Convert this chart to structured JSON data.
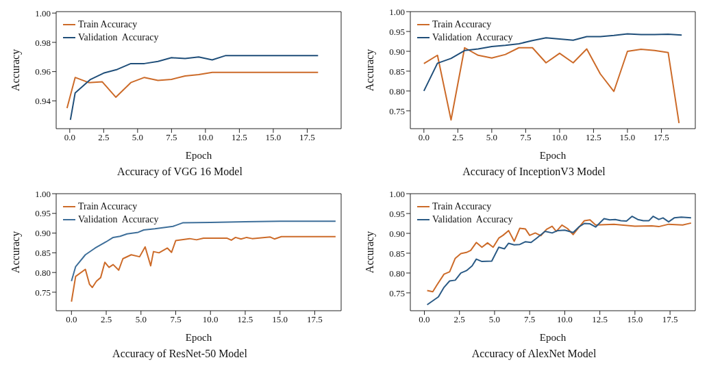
{
  "chart_data": [
    {
      "type": "line",
      "title": "Accuracy of VGG 16 Model",
      "xlabel": "Epoch",
      "ylabel": "Accuracy",
      "legend": "top left",
      "grid": false,
      "marker": "none",
      "line_style": "solid",
      "xlim": [
        -1,
        20
      ],
      "ylim": [
        0.921,
        1.001
      ],
      "xticks": [
        {
          "value": 0,
          "label": "0.0"
        },
        {
          "value": 2.5,
          "label": "2.5"
        },
        {
          "value": 5,
          "label": "5.0"
        },
        {
          "value": 7.5,
          "label": "7.5"
        },
        {
          "value": 10,
          "label": "10.0"
        },
        {
          "value": 12.5,
          "label": "12.5"
        },
        {
          "value": 15,
          "label": "15.0"
        },
        {
          "value": 17.5,
          "label": "17.5"
        }
      ],
      "yticks": [
        0.94,
        0.96,
        0.98,
        {
          "value": 1,
          "label": "1.00"
        }
      ],
      "series": [
        {
          "name": "Train Accuracy",
          "color": "#cc6a28",
          "x": [
            -0.2,
            0.4,
            1.4,
            2.4,
            3.4,
            4.5,
            5.5,
            6.5,
            7.5,
            8.5,
            9.5,
            10.5,
            18.3
          ],
          "values": [
            0.935,
            0.956,
            0.9525,
            0.953,
            0.9425,
            0.9525,
            0.956,
            0.954,
            0.9547,
            0.957,
            0.958,
            0.9595,
            0.9595
          ]
        },
        {
          "name": "Validation  Accuracy",
          "color": "#1f4e79",
          "x": [
            0.05,
            0.4,
            1.5,
            2.5,
            3.5,
            4.5,
            5.5,
            6.5,
            7.5,
            8.5,
            9.5,
            10.5,
            11.5,
            18.3
          ],
          "values": [
            0.927,
            0.9455,
            0.9545,
            0.959,
            0.9615,
            0.9655,
            0.9655,
            0.967,
            0.9695,
            0.969,
            0.97,
            0.968,
            0.971,
            0.971
          ]
        }
      ]
    },
    {
      "type": "line",
      "title": "Accuracy of InceptionV3 Model",
      "xlabel": "Epoch",
      "ylabel": "Accuracy",
      "legend": "top left",
      "grid": false,
      "marker": "none",
      "line_style": "solid",
      "xlim": [
        -1,
        20
      ],
      "ylim": [
        0.705,
        1.0
      ],
      "xticks": [
        {
          "value": 0,
          "label": "0.0"
        },
        {
          "value": 2.5,
          "label": "2.5"
        },
        {
          "value": 5,
          "label": "5.0"
        },
        {
          "value": 7.5,
          "label": "7.5"
        },
        {
          "value": 10,
          "label": "10.0"
        },
        {
          "value": 12.5,
          "label": "12.5"
        },
        {
          "value": 15,
          "label": "15.0"
        },
        {
          "value": 17.5,
          "label": "17.5"
        }
      ],
      "yticks": [
        0.75,
        {
          "value": 0.8,
          "label": "0.80"
        },
        0.85,
        {
          "value": 0.9,
          "label": "0.90"
        },
        0.95,
        {
          "value": 1,
          "label": "1.00"
        }
      ],
      "series": [
        {
          "name": "Train Accuracy",
          "color": "#cc6a28",
          "x": [
            0,
            1,
            2,
            3,
            4,
            5,
            6,
            7,
            8,
            9,
            10,
            11,
            12,
            13,
            14,
            15,
            16,
            17,
            18,
            18.8
          ],
          "values": [
            0.869,
            0.89,
            0.727,
            0.909,
            0.89,
            0.883,
            0.892,
            0.909,
            0.909,
            0.871,
            0.895,
            0.871,
            0.906,
            0.843,
            0.799,
            0.9,
            0.905,
            0.902,
            0.897,
            0.719
          ]
        },
        {
          "name": "Validation  Accuracy",
          "color": "#1f4e79",
          "x": [
            0,
            1,
            2,
            3,
            4,
            5,
            6,
            7,
            8,
            9,
            10,
            11,
            12,
            13,
            14,
            15,
            16,
            17,
            18,
            19
          ],
          "values": [
            0.8,
            0.87,
            0.882,
            0.902,
            0.906,
            0.912,
            0.915,
            0.919,
            0.927,
            0.934,
            0.931,
            0.928,
            0.937,
            0.937,
            0.94,
            0.944,
            0.942,
            0.942,
            0.943,
            0.941
          ]
        }
      ]
    },
    {
      "type": "line",
      "title": "Accuracy of ResNet-50 Model",
      "xlabel": "Epoch",
      "ylabel": "Accuracy",
      "legend": "top left",
      "grid": false,
      "marker": "none",
      "line_style": "solid",
      "xlim": [
        -1.1,
        19.4
      ],
      "ylim": [
        0.703,
        1.0
      ],
      "xticks": [
        {
          "value": 0,
          "label": "0.0"
        },
        {
          "value": 2.5,
          "label": "2.5"
        },
        {
          "value": 5,
          "label": "5.0"
        },
        {
          "value": 7.5,
          "label": "7.5"
        },
        {
          "value": 10,
          "label": "10.0"
        },
        {
          "value": 12.5,
          "label": "12.5"
        },
        {
          "value": 15,
          "label": "15.0"
        },
        {
          "value": 17.5,
          "label": "17.5"
        }
      ],
      "yticks": [
        0.75,
        {
          "value": 0.8,
          "label": "0.80"
        },
        0.85,
        {
          "value": 0.9,
          "label": "0.90"
        },
        0.95,
        {
          "value": 1,
          "label": "1.00"
        }
      ],
      "series": [
        {
          "name": "Train Accuracy",
          "color": "#cc6a28",
          "x": [
            0,
            0.3,
            1.0,
            1.3,
            1.5,
            1.8,
            2.1,
            2.4,
            2.7,
            3.0,
            3.4,
            3.7,
            4.3,
            4.9,
            5.3,
            5.7,
            5.9,
            6.3,
            6.9,
            7.2,
            7.5,
            8.5,
            9.0,
            9.5,
            11.2,
            11.5,
            11.8,
            12.2,
            12.6,
            13.0,
            14.3,
            14.6,
            15.1,
            19.0
          ],
          "values": [
            0.726,
            0.79,
            0.808,
            0.77,
            0.762,
            0.778,
            0.787,
            0.826,
            0.813,
            0.82,
            0.806,
            0.835,
            0.845,
            0.84,
            0.865,
            0.817,
            0.853,
            0.85,
            0.862,
            0.851,
            0.881,
            0.886,
            0.883,
            0.887,
            0.887,
            0.882,
            0.889,
            0.885,
            0.889,
            0.886,
            0.89,
            0.885,
            0.891,
            0.891
          ]
        },
        {
          "name": "Validation  Accuracy",
          "color": "#3d6e99",
          "x": [
            0,
            0.3,
            1.0,
            1.7,
            2.5,
            3.0,
            3.5,
            4.0,
            4.8,
            5.2,
            6.0,
            7.3,
            8.0,
            10.0,
            12.5,
            15.0,
            19.0
          ],
          "values": [
            0.778,
            0.815,
            0.845,
            0.862,
            0.878,
            0.889,
            0.892,
            0.898,
            0.902,
            0.908,
            0.911,
            0.917,
            0.926,
            0.927,
            0.929,
            0.93,
            0.93
          ]
        }
      ]
    },
    {
      "type": "line",
      "title": "Accuracy of AlexNet Model",
      "xlabel": "Epoch",
      "ylabel": "Accuracy",
      "legend": "top left",
      "grid": false,
      "marker": "none",
      "line_style": "solid",
      "xlim": [
        -1,
        19.3
      ],
      "ylim": [
        0.705,
        1.0
      ],
      "xticks": [
        {
          "value": 0,
          "label": "0.0"
        },
        {
          "value": 2.5,
          "label": "2.5"
        },
        {
          "value": 5,
          "label": "5.0"
        },
        {
          "value": 7.5,
          "label": "7.5"
        },
        {
          "value": 10,
          "label": "10.0"
        },
        {
          "value": 12.5,
          "label": "12.5"
        },
        {
          "value": 15,
          "label": "15.0"
        },
        {
          "value": 17.5,
          "label": "17.5"
        }
      ],
      "yticks": [
        0.75,
        {
          "value": 0.8,
          "label": "0.80"
        },
        0.85,
        {
          "value": 0.9,
          "label": "0.90"
        },
        0.95,
        {
          "value": 1,
          "label": "1.00"
        }
      ],
      "series": [
        {
          "name": "Train Accuracy",
          "color": "#cc6a28",
          "x": [
            0.2,
            0.6,
            0.9,
            1.4,
            1.8,
            2.2,
            2.6,
            3.0,
            3.3,
            3.7,
            4.1,
            4.5,
            4.9,
            5.3,
            5.6,
            6.0,
            6.4,
            6.8,
            7.2,
            7.5,
            7.9,
            8.3,
            8.7,
            9.1,
            9.4,
            9.8,
            10.2,
            10.6,
            11.0,
            11.4,
            11.8,
            12.2,
            13.5,
            15.0,
            16.2,
            16.7,
            17.4,
            18.4,
            19.0
          ],
          "values": [
            0.756,
            0.753,
            0.77,
            0.797,
            0.803,
            0.837,
            0.849,
            0.852,
            0.857,
            0.877,
            0.865,
            0.876,
            0.865,
            0.888,
            0.895,
            0.907,
            0.88,
            0.913,
            0.911,
            0.895,
            0.901,
            0.894,
            0.91,
            0.918,
            0.905,
            0.921,
            0.912,
            0.897,
            0.915,
            0.932,
            0.934,
            0.921,
            0.923,
            0.918,
            0.919,
            0.917,
            0.923,
            0.921,
            0.926
          ]
        },
        {
          "name": "Validation  Accuracy",
          "color": "#2a5a85",
          "x": [
            0.2,
            0.6,
            1.0,
            1.4,
            1.8,
            2.2,
            2.6,
            3.0,
            3.4,
            3.7,
            4.1,
            4.8,
            5.3,
            5.7,
            6.0,
            6.4,
            6.8,
            7.2,
            7.6,
            8.0,
            8.6,
            9.1,
            9.5,
            10.0,
            10.6,
            11.0,
            11.4,
            11.8,
            12.2,
            12.8,
            13.2,
            13.6,
            14.0,
            14.4,
            14.8,
            15.2,
            15.6,
            16.0,
            16.3,
            16.7,
            17.0,
            17.4,
            17.8,
            18.3,
            19.0
          ],
          "values": [
            0.72,
            0.73,
            0.74,
            0.764,
            0.78,
            0.782,
            0.8,
            0.806,
            0.818,
            0.835,
            0.829,
            0.83,
            0.865,
            0.861,
            0.875,
            0.871,
            0.872,
            0.879,
            0.877,
            0.888,
            0.905,
            0.901,
            0.907,
            0.908,
            0.902,
            0.916,
            0.925,
            0.924,
            0.916,
            0.937,
            0.934,
            0.935,
            0.932,
            0.931,
            0.943,
            0.935,
            0.932,
            0.932,
            0.943,
            0.935,
            0.939,
            0.929,
            0.939,
            0.941,
            0.939
          ]
        }
      ]
    }
  ]
}
